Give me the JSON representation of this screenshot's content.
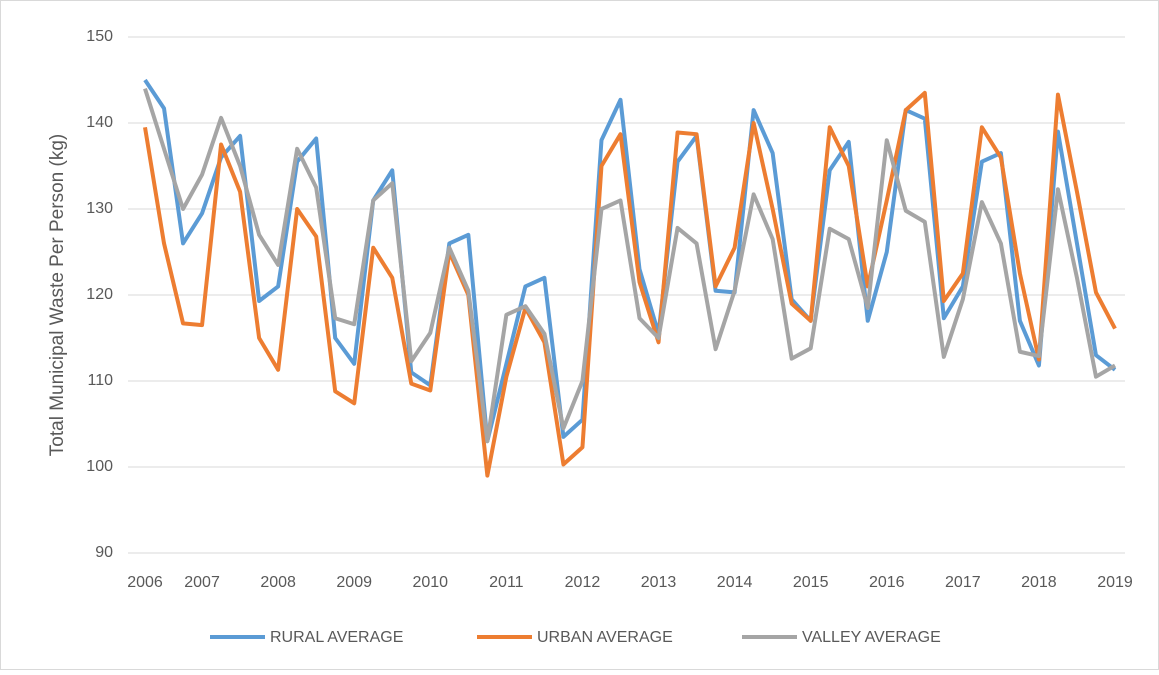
{
  "chart_data": {
    "type": "line",
    "ylabel": "Total Municipal Waste Per Person (kg)",
    "categories": [
      "2006",
      null,
      null,
      "2007",
      null,
      null,
      null,
      "2008",
      null,
      null,
      null,
      "2009",
      null,
      null,
      null,
      "2010",
      null,
      null,
      null,
      "2011",
      null,
      null,
      null,
      "2012",
      null,
      null,
      null,
      "2013",
      null,
      null,
      null,
      "2014",
      null,
      null,
      null,
      "2015",
      null,
      null,
      null,
      "2016",
      null,
      null,
      null,
      "2017",
      null,
      null,
      null,
      "2018",
      null,
      null,
      null,
      "2019"
    ],
    "series": [
      {
        "name": "RURAL AVERAGE",
        "color": "#5b9bd5",
        "values": [
          145,
          141.7,
          126,
          129.5,
          136,
          138.5,
          119.3,
          121,
          135.5,
          138.2,
          115,
          112,
          131,
          134.5,
          111,
          109.5,
          126,
          127,
          103,
          112,
          121,
          122,
          103.5,
          105.5,
          138,
          142.7,
          123,
          115.5,
          135.5,
          138.5,
          120.5,
          120.3,
          141.5,
          136.5,
          119.5,
          117,
          134.5,
          137.8,
          117,
          125,
          141.5,
          140.5,
          117.3,
          121,
          135.5,
          136.5,
          117,
          111.8,
          139,
          126,
          113,
          111.3
        ]
      },
      {
        "name": "URBAN AVERAGE",
        "color": "#ed7d31",
        "values": [
          139.5,
          126,
          116.7,
          116.5,
          137.5,
          132,
          115,
          111.3,
          130,
          126.8,
          108.8,
          107.4,
          125.5,
          122,
          109.7,
          108.9,
          125,
          120,
          99,
          110.5,
          118.5,
          114.5,
          100.3,
          102.3,
          135,
          138.7,
          121.5,
          114.5,
          138.9,
          138.7,
          121,
          125.5,
          140,
          130,
          119,
          117,
          139.5,
          135,
          121,
          131,
          141.5,
          143.5,
          119.3,
          122.5,
          139.5,
          136,
          122.5,
          112.5,
          143.3,
          132,
          120.3,
          116.1
        ]
      },
      {
        "name": "VALLEY AVERAGE",
        "color": "#a5a5a5",
        "values": [
          144,
          137,
          130,
          134,
          140.6,
          135,
          127,
          123.5,
          137,
          132.5,
          117.3,
          116.6,
          131,
          133,
          112.3,
          115.6,
          125.5,
          120.5,
          103,
          117.7,
          118.7,
          115.5,
          104.5,
          110,
          130,
          131,
          117.3,
          115,
          127.8,
          126,
          113.7,
          120.5,
          131.7,
          126.5,
          112.6,
          113.8,
          127.7,
          126.5,
          118.5,
          138,
          129.8,
          128.5,
          112.8,
          119.5,
          130.8,
          126,
          113.4,
          112.9,
          132.3,
          122,
          110.5,
          111.8
        ]
      }
    ],
    "ylim": [
      90,
      150
    ],
    "yticks": [
      90,
      100,
      110,
      120,
      130,
      140,
      150
    ],
    "grid": true,
    "legend": "bottom"
  }
}
